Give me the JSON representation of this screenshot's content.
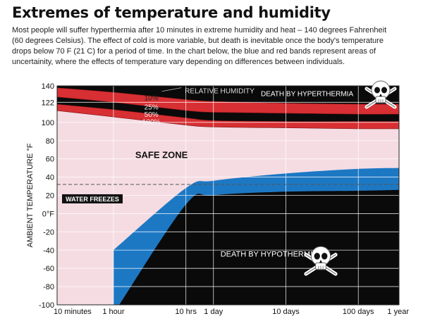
{
  "title": "Extremes of temperature and humidity",
  "intro_lines": [
    "Most people will suffer hyperthermia after 10 minutes in extreme humidity and heat – 140 degrees Fahrenheit",
    "(60 degrees Celsius). The effect of cold is more variable, but death is inevitable once the body's temperature",
    "drops below 70 F (21 C) for a period of time. In the chart below, the blue and red bands represent areas of",
    "uncertainity, where the effects of temperature vary depending on differences between individuals."
  ],
  "chart_data": {
    "type": "area",
    "title": "",
    "ylabel": "AMBIENT TEMPERATURE °F",
    "xlabel": "",
    "x_scale": "log",
    "xlim": [
      10,
      525600
    ],
    "ylim": [
      -100,
      140
    ],
    "grid": true,
    "x_ticks": [
      {
        "label": "10 minutes",
        "minutes": 10
      },
      {
        "label": "1 hour",
        "minutes": 60
      },
      {
        "label": "10 hrs",
        "minutes": 600
      },
      {
        "label": "1 day",
        "minutes": 1440
      },
      {
        "label": "10 days",
        "minutes": 14400
      },
      {
        "label": "100 days",
        "minutes": 144000
      },
      {
        "label": "1 year",
        "minutes": 525600
      }
    ],
    "y_ticks": [
      {
        "label": "140",
        "value": 140
      },
      {
        "label": "122",
        "value": 122
      },
      {
        "label": "100",
        "value": 100
      },
      {
        "label": "80",
        "value": 80
      },
      {
        "label": "60",
        "value": 60
      },
      {
        "label": "40",
        "value": 40
      },
      {
        "label": "20",
        "value": 20
      },
      {
        "label": "0°F",
        "value": 0
      },
      {
        "label": "-20",
        "value": -20
      },
      {
        "label": "-40",
        "value": -40
      },
      {
        "label": "-60",
        "value": -60
      },
      {
        "label": "-80",
        "value": -80
      },
      {
        "label": "-100",
        "value": -100
      }
    ],
    "hyperthermia_curves": [
      {
        "name": "10%",
        "x": [
          10,
          60,
          600,
          1440,
          14400,
          144000,
          525600
        ],
        "y": [
          138,
          133,
          125,
          123,
          121,
          120,
          120
        ]
      },
      {
        "name": "25%",
        "x": [
          10,
          60,
          600,
          1440,
          14400,
          144000,
          525600
        ],
        "y": [
          128,
          122,
          113,
          111,
          110,
          109,
          109
        ]
      },
      {
        "name": "50%",
        "x": [
          10,
          60,
          600,
          1440,
          14400,
          144000,
          525600
        ],
        "y": [
          120,
          114,
          105,
          102,
          101,
          101,
          101
        ]
      },
      {
        "name": "100%",
        "x": [
          10,
          60,
          600,
          1440,
          14400,
          144000,
          525600
        ],
        "y": [
          113,
          106,
          97,
          95,
          94,
          93,
          93
        ]
      }
    ],
    "hypothermia_band": {
      "x": [
        60,
        600,
        1440,
        14400,
        144000,
        525600
      ],
      "upper": [
        -40,
        28,
        36,
        44,
        49,
        50
      ],
      "lower": [
        -100,
        10,
        20,
        24,
        25,
        26
      ]
    },
    "water_freezes_value": 32,
    "annotations": {
      "relative_humidity": "RELATIVE HUMIDITY",
      "death_by_hyperthermia": "DEATH BY HYPERTHERMIA",
      "safe_zone": "SAFE ZONE",
      "water_freezes": "WATER FREEZES",
      "death_by_hypothermia": "DEATH BY HYPOTHERMIA"
    },
    "colors": {
      "plot_background": "#f5dce3",
      "black": "#0a0a0a",
      "red": "#d72f33",
      "blue": "#1d78c4",
      "grid": "#ffffff"
    }
  }
}
